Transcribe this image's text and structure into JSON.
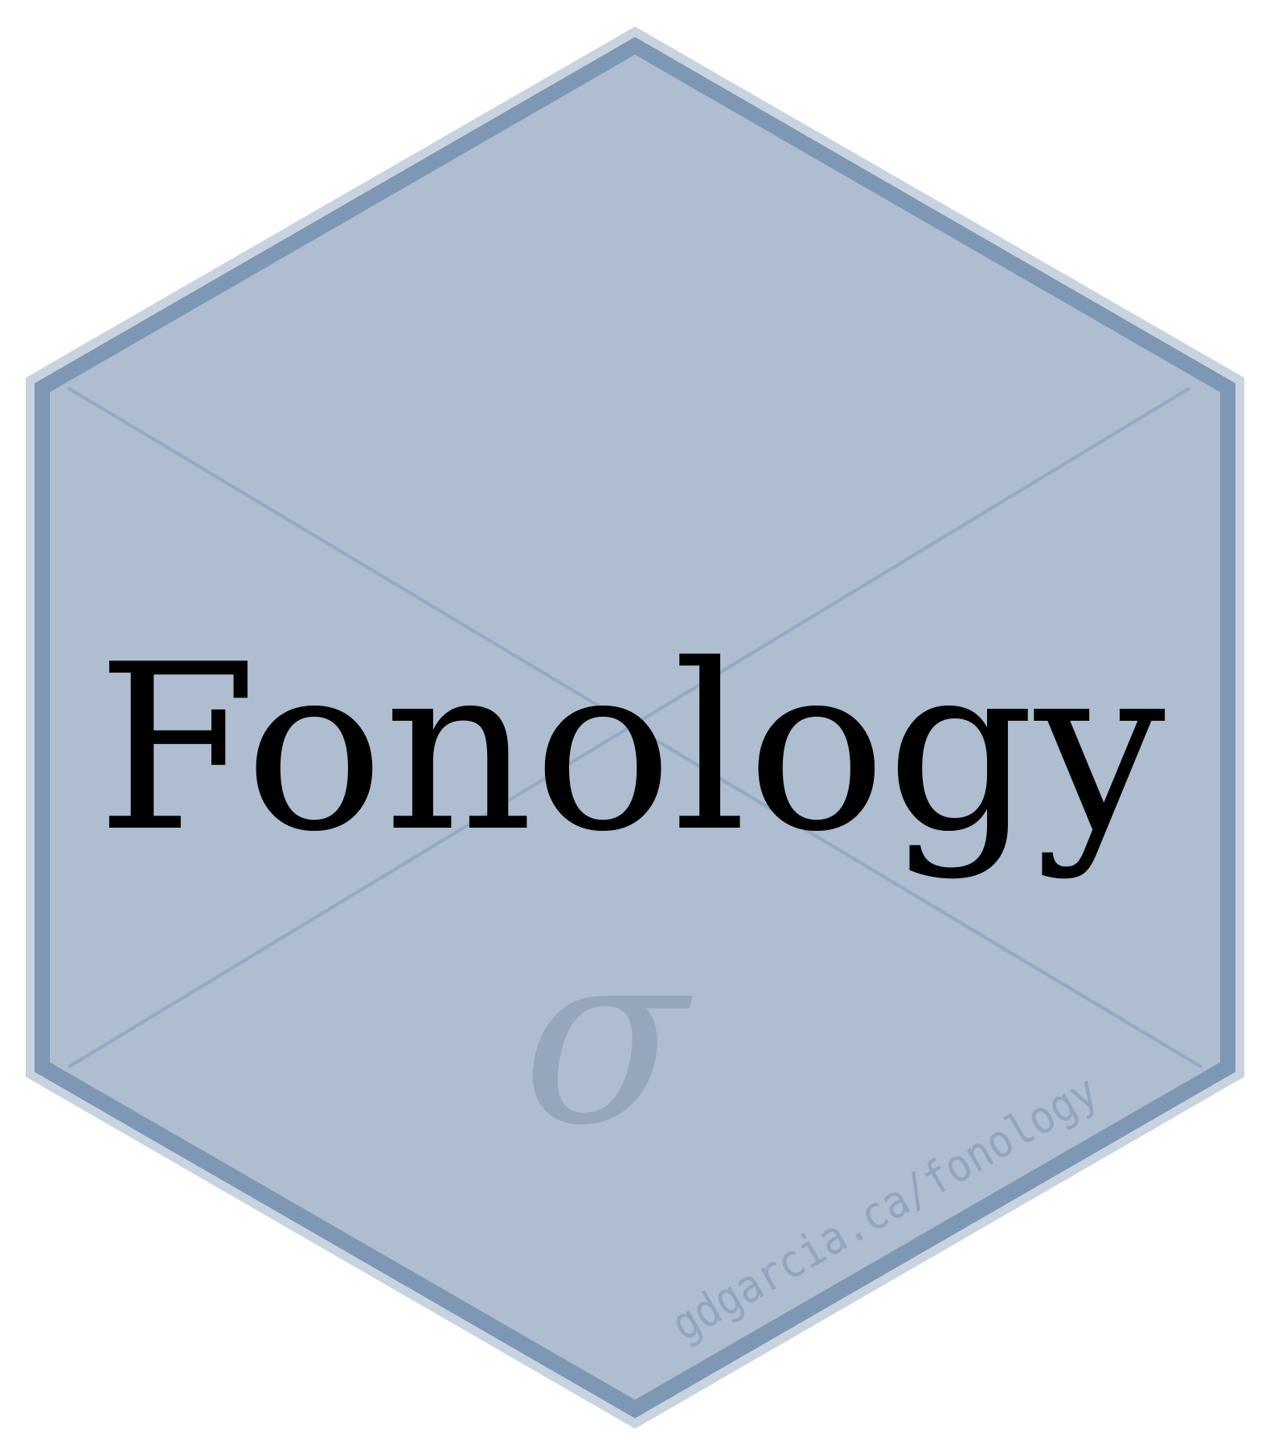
{
  "logo": {
    "title": "Fonology",
    "symbol": "σ",
    "url": "gdgarcia.ca/fonology"
  },
  "colors": {
    "fill": "#aebdcf",
    "border": "#7d97b5",
    "outer_border": "#c9d3e0",
    "diagonals": "#8ba3c0",
    "title": "#000000",
    "symbol": "#97a7bb",
    "url": "#92a5bd"
  }
}
